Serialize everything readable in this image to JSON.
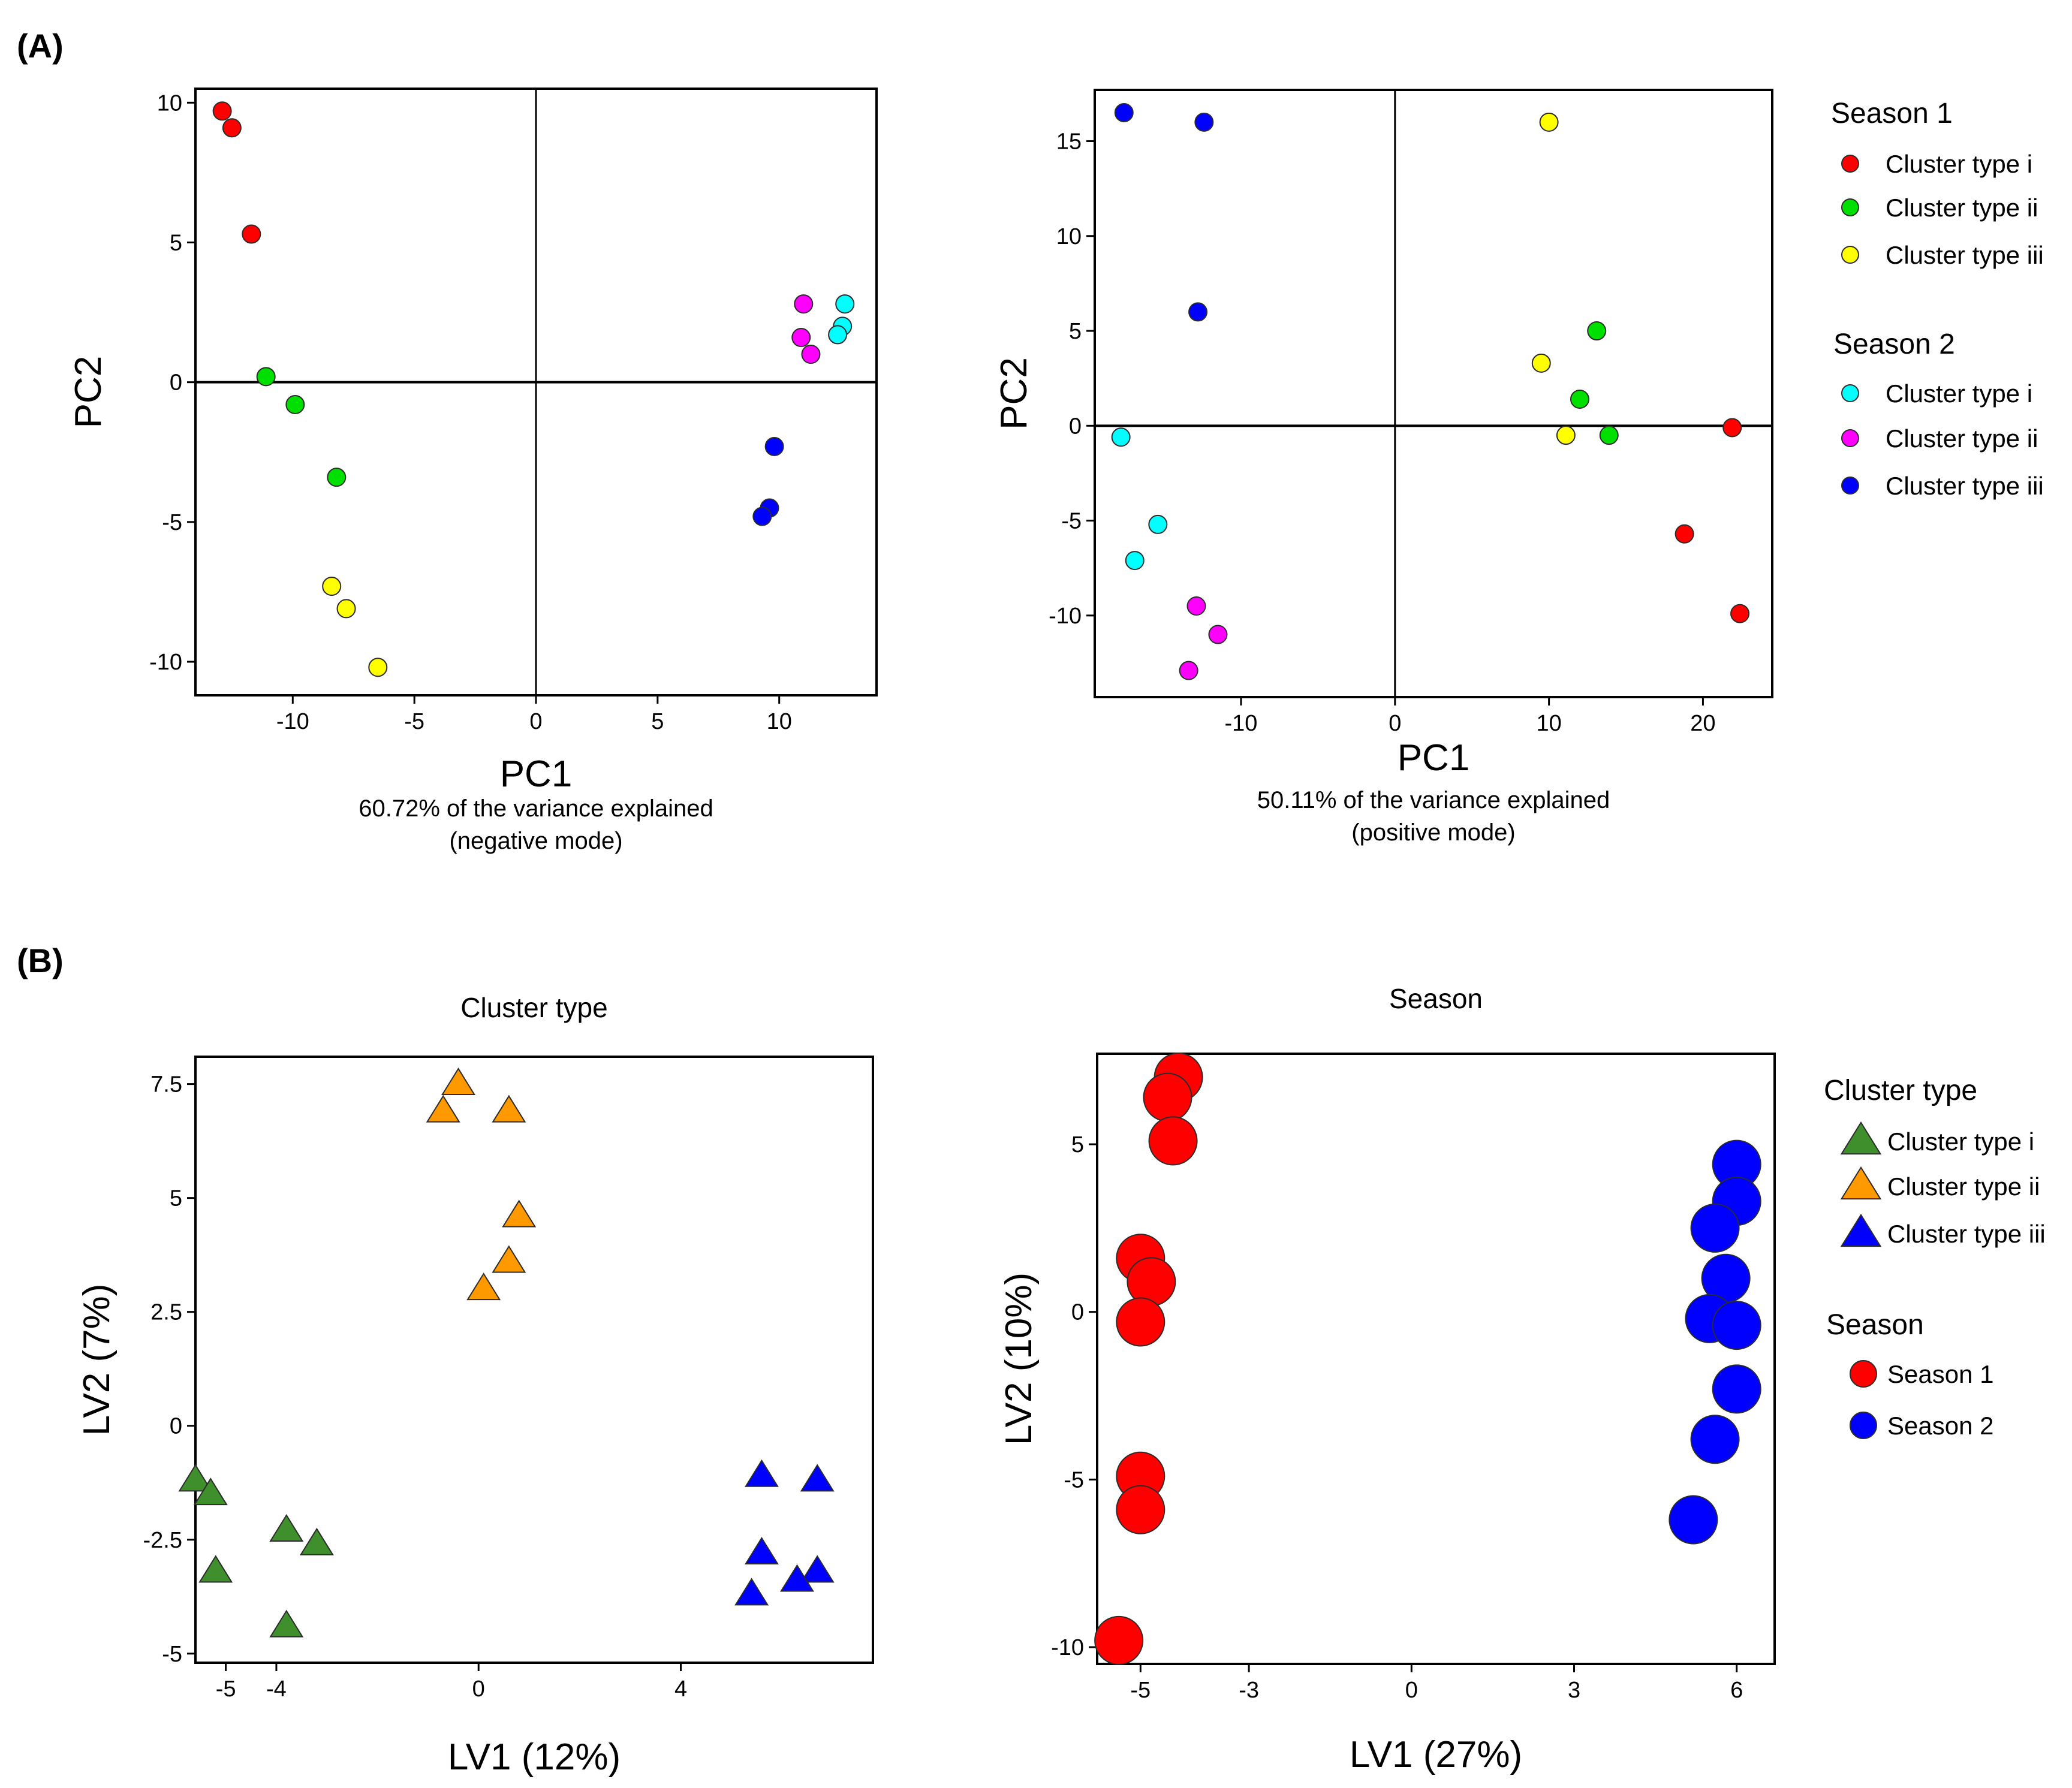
{
  "panel_labels": {
    "a": "(A)",
    "b": "(B)"
  },
  "colors": {
    "s1_i": "#ff0000",
    "s1_ii": "#00e000",
    "s1_iii": "#ffff00",
    "s2_i": "#00ffff",
    "s2_ii": "#ff00ff",
    "s2_iii": "#0000ff",
    "ct_i": "#3f8f2c",
    "ct_ii": "#ff9900",
    "ct_iii": "#0000ff",
    "season1": "#ff0000",
    "season2": "#0000ff"
  },
  "legend_a": {
    "groups": [
      {
        "title": "Season 1",
        "items": [
          {
            "label": "Cluster type i",
            "color": "#ff0000"
          },
          {
            "label": "Cluster type ii",
            "color": "#00e000"
          },
          {
            "label": "Cluster type iii",
            "color": "#ffff00"
          }
        ]
      },
      {
        "title": "Season 2",
        "items": [
          {
            "label": "Cluster type i",
            "color": "#00ffff"
          },
          {
            "label": "Cluster type ii",
            "color": "#ff00ff"
          },
          {
            "label": "Cluster type iii",
            "color": "#0000ff"
          }
        ]
      }
    ]
  },
  "legend_b": {
    "groups": [
      {
        "title": "Cluster type",
        "marker": "triangle",
        "items": [
          {
            "label": "Cluster type i",
            "color": "#3f8f2c"
          },
          {
            "label": "Cluster type ii",
            "color": "#ff9900"
          },
          {
            "label": "Cluster type iii",
            "color": "#0000ff"
          }
        ]
      },
      {
        "title": "Season",
        "marker": "circle",
        "items": [
          {
            "label": "Season 1",
            "color": "#ff0000"
          },
          {
            "label": "Season 2",
            "color": "#0000ff"
          }
        ]
      }
    ]
  },
  "chart_data": [
    {
      "type": "scatter",
      "title": "",
      "xlabel": "PC1",
      "ylabel": "PC2",
      "caption_line1": "60.72% of the variance explained",
      "caption_line2": "(negative mode)",
      "xlim": [
        -14,
        14
      ],
      "ylim": [
        -11.2,
        10.5
      ],
      "xticks": [
        -10,
        -5,
        0,
        5,
        10
      ],
      "yticks": [
        -10,
        -5,
        0,
        5,
        10
      ],
      "reference_lines": {
        "x": 0,
        "y": 0
      },
      "marker": "circle",
      "series": [
        {
          "name": "Season 1 - Cluster type i",
          "color": "#ff0000",
          "points": [
            [
              -12.9,
              9.7
            ],
            [
              -12.5,
              9.1
            ],
            [
              -11.7,
              5.3
            ]
          ]
        },
        {
          "name": "Season 1 - Cluster type ii",
          "color": "#00e000",
          "points": [
            [
              -11.1,
              0.2
            ],
            [
              -9.9,
              -0.8
            ],
            [
              -8.2,
              -3.4
            ]
          ]
        },
        {
          "name": "Season 1 - Cluster type iii",
          "color": "#ffff00",
          "points": [
            [
              -8.4,
              -7.3
            ],
            [
              -7.8,
              -8.1
            ],
            [
              -6.5,
              -10.2
            ]
          ]
        },
        {
          "name": "Season 2 - Cluster type i",
          "color": "#00ffff",
          "points": [
            [
              12.7,
              2.8
            ],
            [
              12.6,
              2.0
            ],
            [
              12.4,
              1.7
            ]
          ]
        },
        {
          "name": "Season 2 - Cluster type ii",
          "color": "#ff00ff",
          "points": [
            [
              11.0,
              2.8
            ],
            [
              10.9,
              1.6
            ],
            [
              11.3,
              1.0
            ]
          ]
        },
        {
          "name": "Season 2 - Cluster type iii",
          "color": "#0000ff",
          "points": [
            [
              9.8,
              -2.3
            ],
            [
              9.6,
              -4.5
            ],
            [
              9.3,
              -4.8
            ]
          ]
        }
      ]
    },
    {
      "type": "scatter",
      "title": "",
      "xlabel": "PC1",
      "ylabel": "PC2",
      "caption_line1": "50.11% of the variance explained",
      "caption_line2": "(positive mode)",
      "xlim": [
        -19.5,
        24.5
      ],
      "ylim": [
        -14.3,
        17.7
      ],
      "xticks": [
        -10,
        0,
        10,
        20
      ],
      "yticks": [
        -10,
        -5,
        0,
        5,
        10,
        15
      ],
      "reference_lines": {
        "x": 0,
        "y": 0
      },
      "marker": "circle",
      "series": [
        {
          "name": "Season 1 - Cluster type i",
          "color": "#ff0000",
          "points": [
            [
              21.9,
              -0.1
            ],
            [
              18.8,
              -5.7
            ],
            [
              22.4,
              -9.9
            ]
          ]
        },
        {
          "name": "Season 1 - Cluster type ii",
          "color": "#00e000",
          "points": [
            [
              13.1,
              5.0
            ],
            [
              12.0,
              1.4
            ],
            [
              13.9,
              -0.5
            ]
          ]
        },
        {
          "name": "Season 1 - Cluster type iii",
          "color": "#ffff00",
          "points": [
            [
              10.0,
              16.0
            ],
            [
              9.5,
              3.3
            ],
            [
              11.1,
              -0.5
            ]
          ]
        },
        {
          "name": "Season 2 - Cluster type i",
          "color": "#00ffff",
          "points": [
            [
              -17.8,
              -0.6
            ],
            [
              -15.4,
              -5.2
            ],
            [
              -16.9,
              -7.1
            ]
          ]
        },
        {
          "name": "Season 2 - Cluster type ii",
          "color": "#ff00ff",
          "points": [
            [
              -12.9,
              -9.5
            ],
            [
              -11.5,
              -11.0
            ],
            [
              -13.4,
              -12.9
            ]
          ]
        },
        {
          "name": "Season 2 - Cluster type iii",
          "color": "#0000ff",
          "points": [
            [
              -17.6,
              16.5
            ],
            [
              -12.4,
              16.0
            ],
            [
              -12.8,
              6.0
            ]
          ]
        }
      ]
    },
    {
      "type": "scatter",
      "title": "Cluster type",
      "xlabel": "LV1 (12%)",
      "ylabel": "LV2 (7%)",
      "xlim": [
        -5.6,
        7.8
      ],
      "ylim": [
        -5.2,
        8.1
      ],
      "xticks": [
        -5,
        -4,
        0,
        4
      ],
      "xtick_labels": [
        "-5",
        "-4",
        "0",
        "4"
      ],
      "yticks": [
        -5,
        -2.5,
        0,
        2.5,
        5,
        7.5
      ],
      "ytick_labels": [
        "-5",
        "-2.5",
        "0",
        "2.5",
        "5",
        "7.5"
      ],
      "marker": "triangle",
      "series": [
        {
          "name": "Cluster type i",
          "color": "#3f8f2c",
          "points": [
            [
              -5.6,
              -1.2
            ],
            [
              -5.3,
              -1.5
            ],
            [
              -5.2,
              -3.2
            ],
            [
              -3.8,
              -2.3
            ],
            [
              -3.2,
              -2.6
            ],
            [
              -3.8,
              -4.4
            ]
          ]
        },
        {
          "name": "Cluster type ii",
          "color": "#ff9900",
          "points": [
            [
              -0.4,
              7.5
            ],
            [
              -0.7,
              6.9
            ],
            [
              0.6,
              6.9
            ],
            [
              0.8,
              4.6
            ],
            [
              0.6,
              3.6
            ],
            [
              0.1,
              3.0
            ]
          ]
        },
        {
          "name": "Cluster type iii",
          "color": "#0000ff",
          "points": [
            [
              5.6,
              -1.1
            ],
            [
              6.7,
              -1.2
            ],
            [
              5.6,
              -2.8
            ],
            [
              6.7,
              -3.2
            ],
            [
              6.3,
              -3.4
            ],
            [
              5.4,
              -3.7
            ]
          ]
        }
      ]
    },
    {
      "type": "scatter",
      "title": "Season",
      "xlabel": "LV1 (27%)",
      "ylabel": "LV2 (10%)",
      "xlim": [
        -5.8,
        6.7
      ],
      "ylim": [
        -10.5,
        7.7
      ],
      "xticks": [
        -5,
        -3,
        0,
        3,
        6
      ],
      "yticks": [
        -10,
        -5,
        0,
        5
      ],
      "marker": "circle",
      "series": [
        {
          "name": "Season 1",
          "color": "#ff0000",
          "points": [
            [
              -4.3,
              7.0
            ],
            [
              -4.5,
              6.4
            ],
            [
              -4.4,
              5.1
            ],
            [
              -5.0,
              1.6
            ],
            [
              -4.8,
              0.9
            ],
            [
              -5.0,
              -0.3
            ],
            [
              -5.0,
              -4.9
            ],
            [
              -5.0,
              -5.9
            ],
            [
              -5.4,
              -9.8
            ]
          ]
        },
        {
          "name": "Season 2",
          "color": "#0000ff",
          "points": [
            [
              6.0,
              4.4
            ],
            [
              6.0,
              3.3
            ],
            [
              5.6,
              2.5
            ],
            [
              5.8,
              1.0
            ],
            [
              5.5,
              -0.2
            ],
            [
              6.0,
              -0.4
            ],
            [
              6.0,
              -2.3
            ],
            [
              5.6,
              -3.8
            ],
            [
              5.2,
              -6.2
            ]
          ]
        }
      ]
    }
  ]
}
